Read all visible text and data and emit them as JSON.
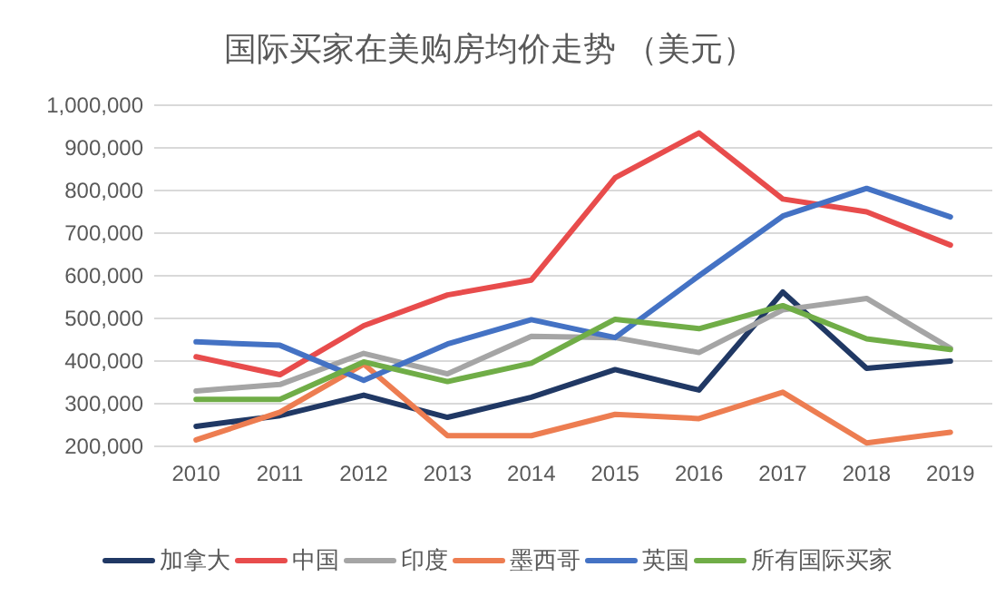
{
  "chart_data": {
    "type": "line",
    "title": "国际买家在美购房均价走势 （美元）",
    "categories": [
      "2010",
      "2011",
      "2012",
      "2013",
      "2014",
      "2015",
      "2016",
      "2017",
      "2018",
      "2019"
    ],
    "series": [
      {
        "name": "加拿大",
        "color": "#203864",
        "values": [
          247000,
          272000,
          320000,
          268000,
          315000,
          380000,
          332000,
          562000,
          383000,
          400000
        ]
      },
      {
        "name": "中国",
        "color": "#e84c4c",
        "values": [
          410000,
          368000,
          483000,
          555000,
          590000,
          830000,
          935000,
          780000,
          750000,
          672000
        ]
      },
      {
        "name": "印度",
        "color": "#a5a5a5",
        "values": [
          330000,
          345000,
          418000,
          370000,
          458000,
          455000,
          420000,
          520000,
          547000,
          430000
        ]
      },
      {
        "name": "墨西哥",
        "color": "#ed7d51",
        "values": [
          215000,
          280000,
          393000,
          225000,
          225000,
          275000,
          265000,
          327000,
          208000,
          233000
        ]
      },
      {
        "name": "英国",
        "color": "#4472c4",
        "values": [
          445000,
          437000,
          355000,
          440000,
          497000,
          455000,
          600000,
          740000,
          805000,
          738000
        ]
      },
      {
        "name": "所有国际买家",
        "color": "#70ad47",
        "values": [
          310000,
          310000,
          398000,
          352000,
          395000,
          498000,
          476000,
          530000,
          452000,
          427000
        ]
      }
    ],
    "ylim": [
      200000,
      1000000
    ],
    "yticks": [
      {
        "value": 200000,
        "label": "200,000"
      },
      {
        "value": 300000,
        "label": "300,000"
      },
      {
        "value": 400000,
        "label": "400,000"
      },
      {
        "value": 500000,
        "label": "500,000"
      },
      {
        "value": 600000,
        "label": "600,000"
      },
      {
        "value": 700000,
        "label": "700,000"
      },
      {
        "value": 800000,
        "label": "800,000"
      },
      {
        "value": 900000,
        "label": "900,000"
      },
      {
        "value": 1000000,
        "label": "1,000,000"
      }
    ],
    "grid": "y",
    "legend": "bottom",
    "marker": "none",
    "line_style": "solid"
  }
}
